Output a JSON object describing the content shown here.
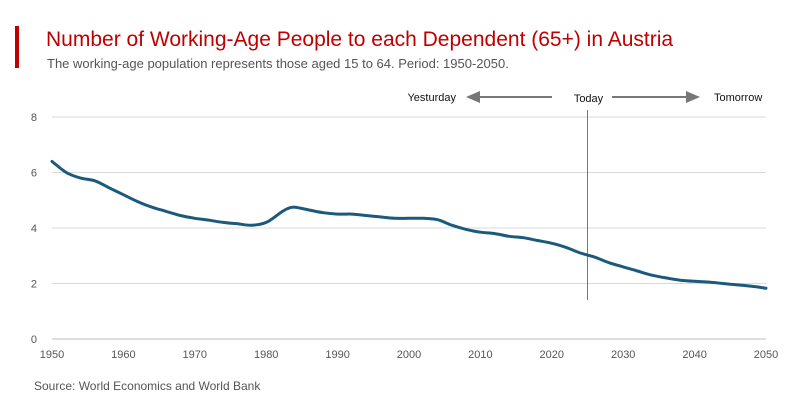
{
  "colors": {
    "accent": "#c00000",
    "line": "#1b5a7a",
    "grid": "#d9d9d9",
    "annotation": "#777777"
  },
  "header": {
    "title": "Number of Working-Age People to each Dependent (65+) in Austria",
    "subtitle": "The working-age population represents those aged 15 to 64. Period: 1950-2050."
  },
  "footer": {
    "source": "Source: World Economics and World Bank"
  },
  "chart_data": {
    "type": "line",
    "title": "Number of Working-Age People to each Dependent (65+) in Austria",
    "subtitle": "The working-age population represents those aged 15 to 64. Period: 1950-2050.",
    "xlabel": "",
    "ylabel": "",
    "xlim": [
      1950,
      2050
    ],
    "ylim": [
      0,
      8
    ],
    "x_ticks": [
      1950,
      1960,
      1970,
      1980,
      1990,
      2000,
      2010,
      2020,
      2030,
      2040,
      2050
    ],
    "y_ticks": [
      0,
      2,
      4,
      6,
      8
    ],
    "grid": "horizontal",
    "annotations": {
      "today_label": "Today",
      "today_year": 2025,
      "past_label": "Yesturday",
      "future_label": "Tomorrow"
    },
    "series": [
      {
        "name": "Working-age people per dependent (65+)",
        "x": [
          1950,
          1952,
          1954,
          1956,
          1958,
          1960,
          1962,
          1964,
          1966,
          1968,
          1970,
          1972,
          1974,
          1976,
          1978,
          1980,
          1982,
          1983,
          1984,
          1986,
          1988,
          1990,
          1992,
          1994,
          1996,
          1998,
          2000,
          2002,
          2004,
          2006,
          2008,
          2010,
          2012,
          2014,
          2016,
          2018,
          2020,
          2022,
          2024,
          2026,
          2028,
          2030,
          2032,
          2034,
          2036,
          2038,
          2040,
          2042,
          2044,
          2046,
          2048,
          2050
        ],
        "values": [
          6.4,
          6.0,
          5.8,
          5.7,
          5.45,
          5.2,
          4.95,
          4.75,
          4.6,
          4.45,
          4.35,
          4.28,
          4.2,
          4.15,
          4.1,
          4.2,
          4.55,
          4.7,
          4.75,
          4.65,
          4.55,
          4.5,
          4.5,
          4.45,
          4.4,
          4.35,
          4.35,
          4.35,
          4.3,
          4.1,
          3.95,
          3.85,
          3.8,
          3.7,
          3.65,
          3.55,
          3.45,
          3.3,
          3.1,
          2.95,
          2.75,
          2.6,
          2.45,
          2.3,
          2.2,
          2.12,
          2.08,
          2.05,
          2.0,
          1.95,
          1.9,
          1.83
        ]
      }
    ]
  }
}
